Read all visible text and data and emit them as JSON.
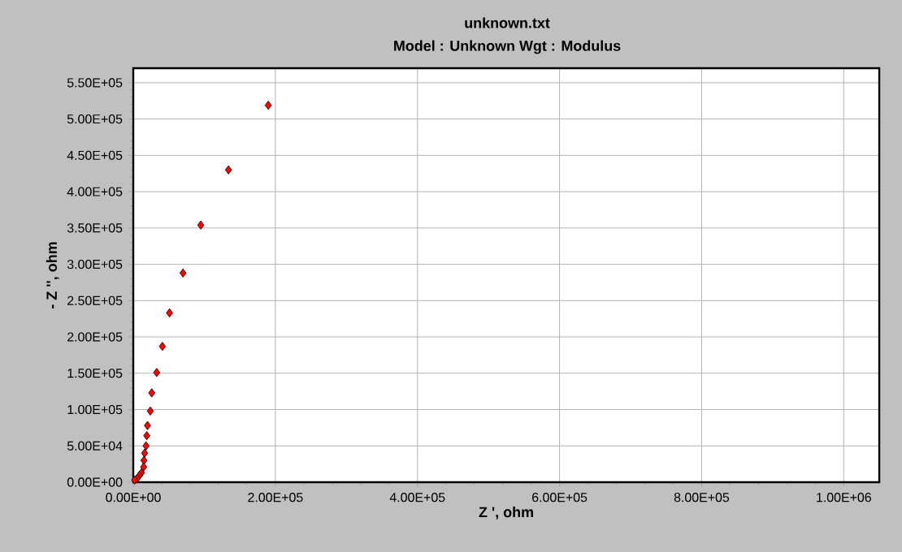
{
  "chart_data": {
    "type": "scatter",
    "title": "unknown.txt",
    "subtitle": "Model : Unknown     Wgt : Modulus",
    "xlabel": "Z ', ohm",
    "ylabel": "- Z '', ohm",
    "x": [
      190000,
      134000,
      95000,
      70000,
      51000,
      41000,
      33000,
      26000,
      24000,
      20000,
      19000,
      18000,
      16000,
      15000,
      14600,
      11500,
      8400,
      5400,
      2000
    ],
    "series": [
      {
        "color": "#ff0000",
        "values": [
          519000,
          430000,
          354000,
          288000,
          233000,
          187000,
          151000,
          123000,
          98000,
          78000,
          64000,
          50000,
          40000,
          30000,
          21000,
          13000,
          9000,
          5000,
          3000
        ]
      }
    ],
    "xlim": [
      0,
      1050000
    ],
    "ylim": [
      0,
      570000
    ],
    "xticks": [
      {
        "value": 0,
        "label": "0.00E+00"
      },
      {
        "value": 200000,
        "label": "2.00E+05"
      },
      {
        "value": 400000,
        "label": "4.00E+05"
      },
      {
        "value": 600000,
        "label": "6.00E+05"
      },
      {
        "value": 800000,
        "label": "8.00E+05"
      },
      {
        "value": 1000000,
        "label": "1.00E+06"
      }
    ],
    "yticks": [
      {
        "value": 0,
        "label": "0.00E+00"
      },
      {
        "value": 50000,
        "label": "5.00E+04"
      },
      {
        "value": 100000,
        "label": "1.00E+05"
      },
      {
        "value": 150000,
        "label": "1.50E+05"
      },
      {
        "value": 200000,
        "label": "2.00E+05"
      },
      {
        "value": 250000,
        "label": "2.50E+05"
      },
      {
        "value": 300000,
        "label": "3.00E+05"
      },
      {
        "value": 350000,
        "label": "3.50E+05"
      },
      {
        "value": 400000,
        "label": "4.00E+05"
      },
      {
        "value": 450000,
        "label": "4.50E+05"
      },
      {
        "value": 500000,
        "label": "5.00E+05"
      },
      {
        "value": 550000,
        "label": "5.50E+05"
      }
    ],
    "grid": true,
    "marker": "diamond"
  }
}
